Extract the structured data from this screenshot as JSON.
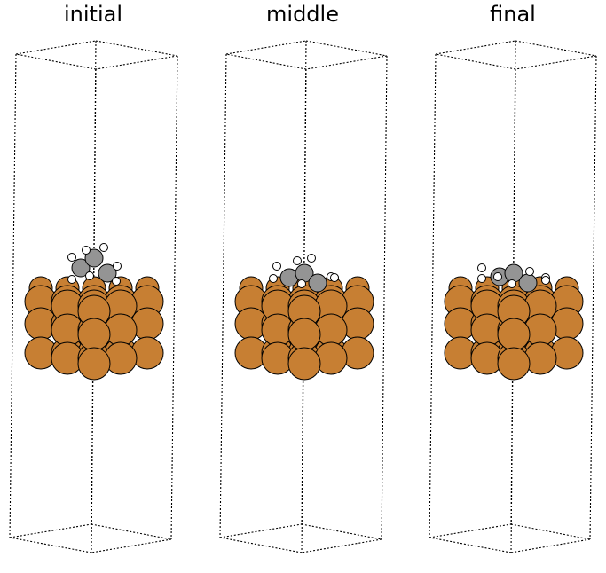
{
  "panels": [
    {
      "id": "initial",
      "title": "initial",
      "state": "initial"
    },
    {
      "id": "middle",
      "title": "middle",
      "state": "middle"
    },
    {
      "id": "final",
      "title": "final",
      "state": "final"
    }
  ],
  "colors": {
    "metal": "#c77f33",
    "carbon": "#949494",
    "hydrogen": "#ffffff",
    "outline": "#000000",
    "cell": "#000000"
  }
}
